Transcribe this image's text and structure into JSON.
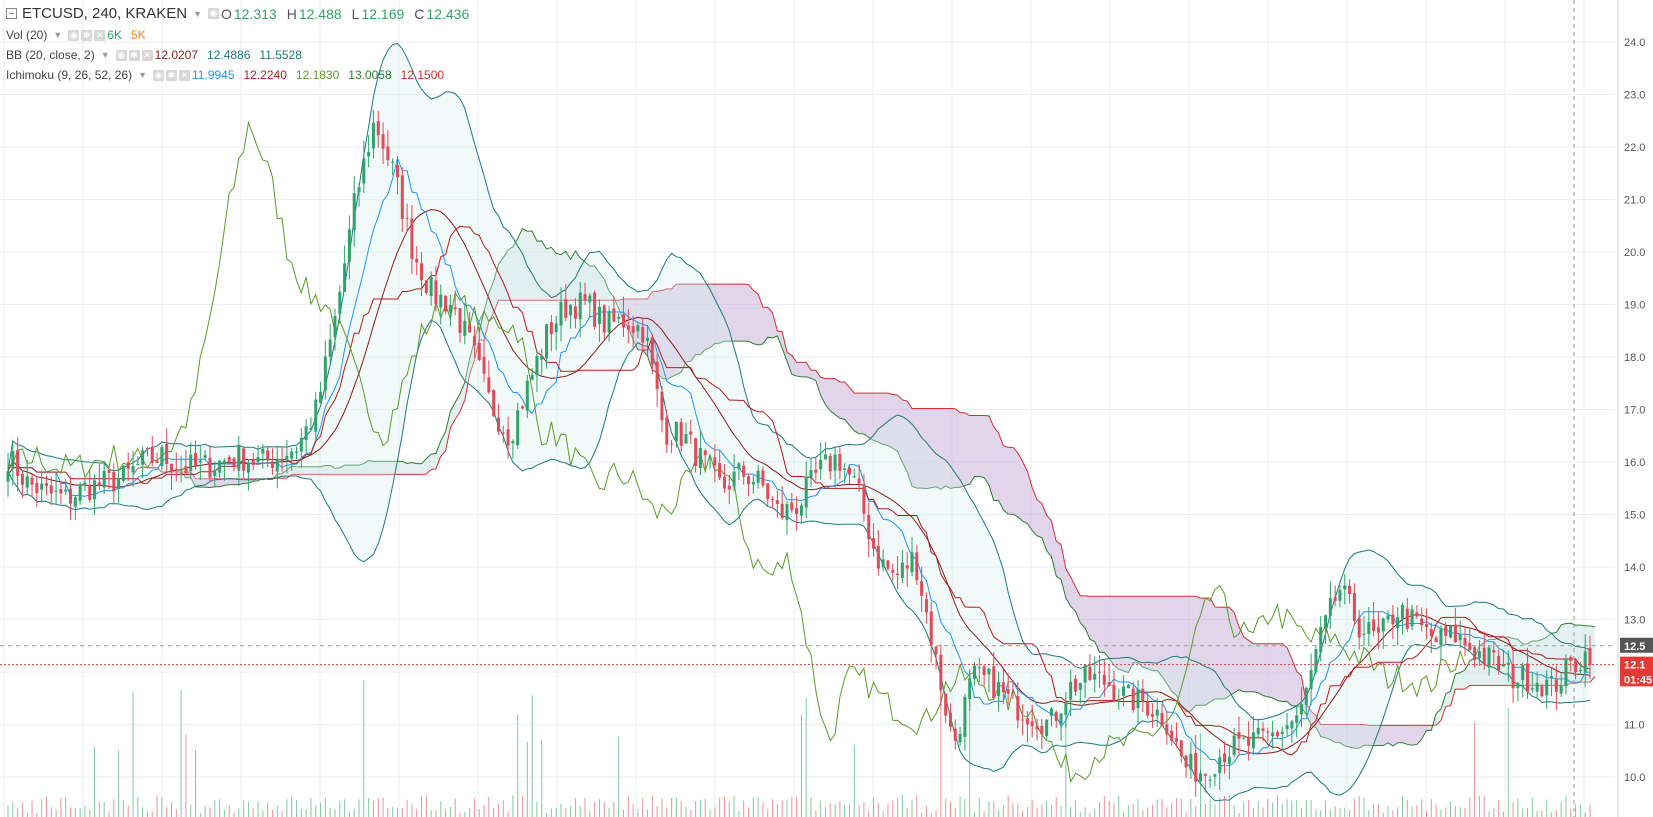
{
  "header": {
    "symbol": "ETCUSD, 240, KRAKEN",
    "ohlc": {
      "o_label": "O",
      "o": "12.313",
      "h_label": "H",
      "h": "12.488",
      "l_label": "L",
      "l": "12.169",
      "c_label": "C",
      "c": "12.436"
    }
  },
  "indicators": {
    "vol": {
      "name": "Vol (20)",
      "v1": "6K",
      "v2": "5K",
      "c1": "#2fa36b",
      "c2": "#f2891d"
    },
    "bb": {
      "name": "BB (20, close, 2)",
      "v1": "12.0207",
      "v2": "12.4886",
      "v3": "11.5528",
      "c1": "#8b1d1d",
      "c2": "#1f7a7a",
      "c3": "#1f7a7a"
    },
    "ichimoku": {
      "name": "Ichimoku (9, 26, 52, 26)",
      "v1": "11.9945",
      "v2": "12.2240",
      "v3": "12.1830",
      "v4": "13.0058",
      "v5": "12.1500",
      "c1": "#2196f3",
      "c2": "#b71c1c",
      "c3": "#5d9b2a",
      "c4": "#2e7d32",
      "c5": "#d32f2f"
    }
  },
  "price_axis": {
    "ticks": [
      "24.0",
      "23.0",
      "22.0",
      "21.0",
      "20.0",
      "19.0",
      "18.0",
      "17.0",
      "16.0",
      "15.0",
      "14.0",
      "13.0",
      "12.0",
      "11.0",
      "10.0"
    ],
    "badges": [
      {
        "label": "12.5",
        "value": 12.5,
        "color": "#555555"
      },
      {
        "label": "12.1",
        "value": 12.14,
        "color": "#e53935"
      },
      {
        "label": "01:45",
        "value": 11.86,
        "color": "#e53935"
      }
    ]
  },
  "colors": {
    "up": "#2fa36b",
    "down": "#e04b5a",
    "bb_fill": "#d7eeee",
    "cloud_bear": "#cbb1d8",
    "cloud_bull": "#cfe6e6",
    "grid": "#e9eef3"
  },
  "chart_data": {
    "type": "candlestick",
    "ylim": [
      9.8,
      24.3
    ],
    "x": "240-minute bars (unlabeled)",
    "approx_close_path": [
      16.1,
      15.6,
      15.4,
      15.3,
      15.5,
      15.6,
      15.7,
      16.0,
      16.1,
      15.9,
      15.9,
      16.0,
      16.1,
      16.0,
      16.1,
      16.3,
      17.0,
      18.8,
      21.0,
      22.5,
      21.5,
      20.0,
      19.2,
      19.0,
      18.2,
      17.1,
      16.5,
      17.5,
      18.5,
      19.0,
      19.0,
      18.6,
      18.7,
      18.5,
      16.6,
      16.5,
      16.0,
      15.5,
      15.8,
      15.6,
      15.0,
      15.2,
      15.8,
      16.1,
      15.5,
      14.2,
      13.8,
      14.2,
      12.4,
      10.6,
      11.9,
      11.8,
      11.4,
      11.2,
      11.0,
      11.7,
      11.9,
      11.8,
      11.5,
      11.4,
      11.1,
      10.2,
      10.1,
      10.5,
      10.6,
      10.7,
      10.9,
      11.2,
      12.6,
      13.6,
      12.9,
      12.6,
      13.2,
      12.9,
      12.6,
      12.7,
      12.4,
      12.2,
      11.9,
      11.9,
      11.7,
      12.1,
      12.4
    ],
    "volume_color_split": "up/down"
  }
}
